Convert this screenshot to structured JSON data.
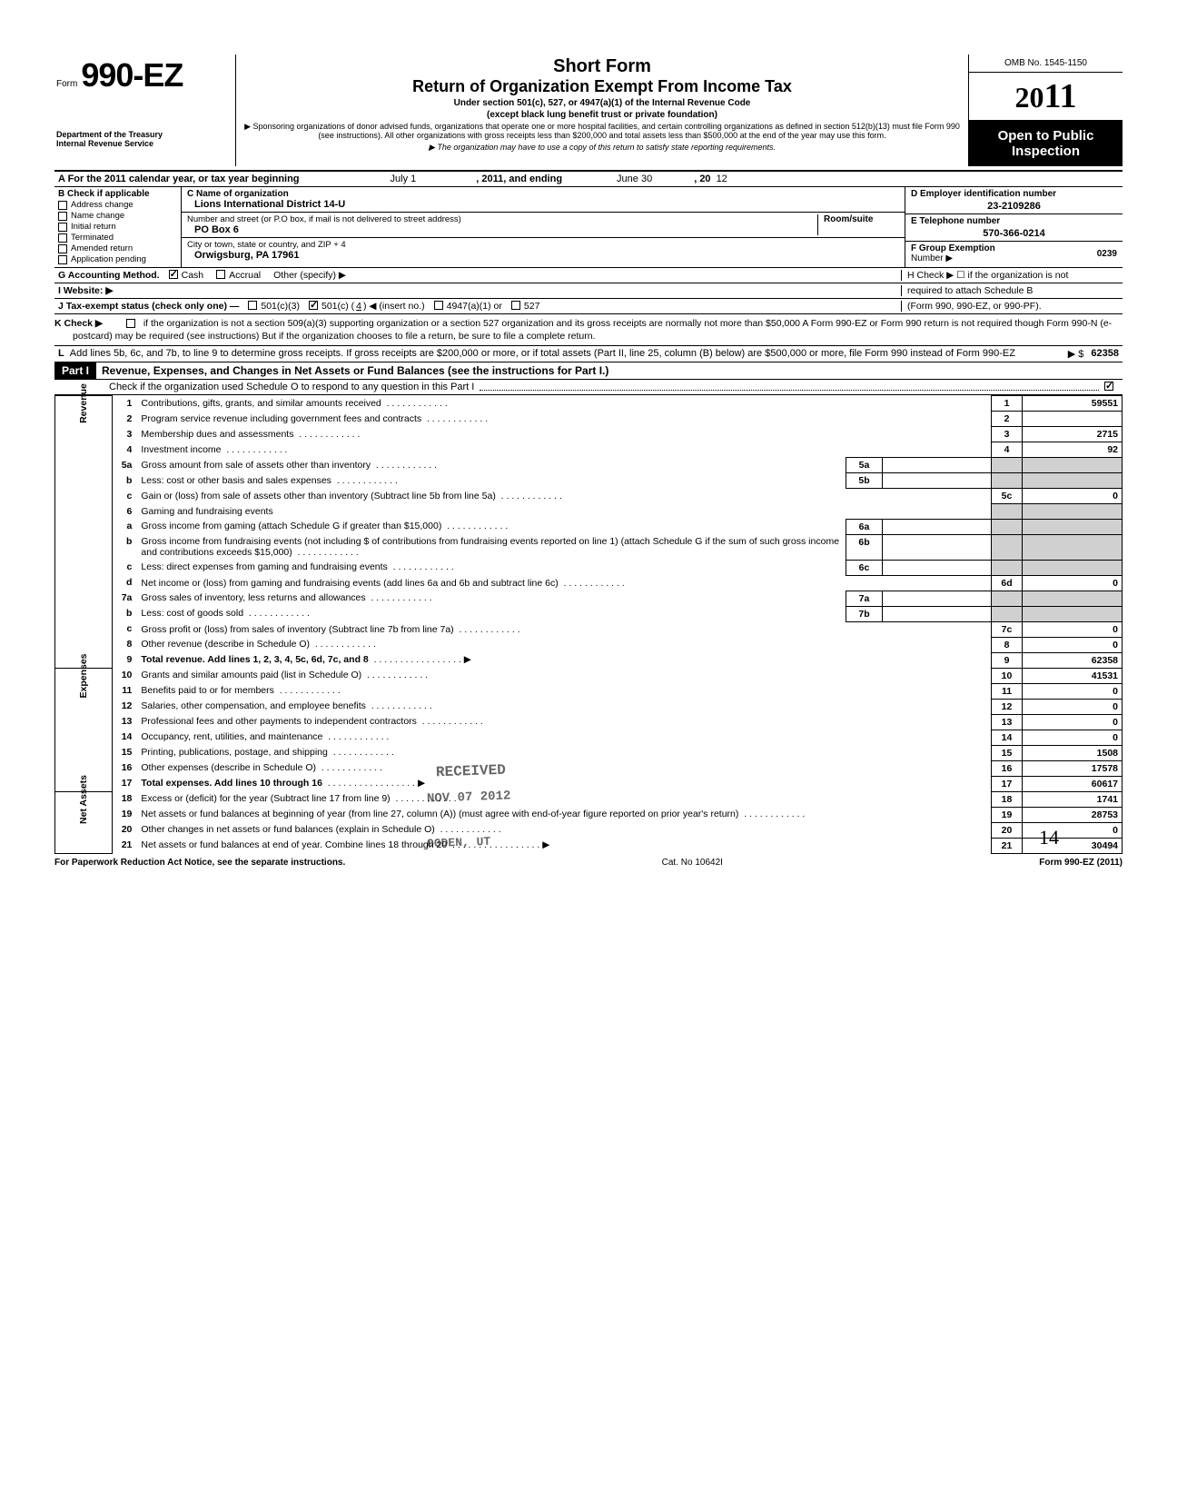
{
  "header": {
    "form_word": "Form",
    "form_no": "990-EZ",
    "dept1": "Department of the Treasury",
    "dept2": "Internal Revenue Service",
    "short": "Short Form",
    "title": "Return of Organization Exempt From Income Tax",
    "sub1": "Under section 501(c), 527, or 4947(a)(1) of the Internal Revenue Code",
    "sub1b": "(except black lung benefit trust or private foundation)",
    "sub2": "▶ Sponsoring organizations of donor advised funds, organizations that operate one or more hospital facilities, and certain controlling organizations as defined in section 512(b)(13) must file Form 990 (see instructions). All other organizations with gross receipts less than $200,000 and total assets less than $500,000 at the end of the year may use this form.",
    "sub3": "▶ The organization may have to use a copy of this return to satisfy state reporting requirements.",
    "omb": "OMB No. 1545-1150",
    "year_prefix": "20",
    "year_big": "11",
    "open1": "Open to Public",
    "open2": "Inspection"
  },
  "lineA": {
    "label": "A  For the 2011 calendar year, or tax year beginning",
    "begin": "July 1",
    "mid": ", 2011, and ending",
    "end": "June 30",
    "yr": ", 20",
    "yrv": "12"
  },
  "colB": {
    "hdr": "B  Check if applicable",
    "items": [
      "Address change",
      "Name change",
      "Initial return",
      "Terminated",
      "Amended return",
      "Application pending"
    ]
  },
  "colC": {
    "hdr": "C  Name of organization",
    "name": "Lions International District 14-U",
    "addr_lbl": "Number and street (or P.O  box, if mail is not delivered to street address)",
    "addr": "PO Box 6",
    "room_lbl": "Room/suite",
    "city_lbl": "City or town, state or country, and ZIP + 4",
    "city": "Orwigsburg, PA 17961"
  },
  "colD": {
    "d_lbl": "D Employer identification number",
    "d_val": "23-2109286",
    "e_lbl": "E Telephone number",
    "e_val": "570-366-0214",
    "f_lbl": "F Group Exemption",
    "f_lbl2": "Number ▶",
    "f_val": "0239"
  },
  "rowG": {
    "g": "G  Accounting Method.",
    "cash": "Cash",
    "accrual": "Accrual",
    "other": "Other (specify) ▶",
    "h": "H  Check ▶ ☐ if the organization is not",
    "h2": "required to attach Schedule B",
    "h3": "(Form 990, 990-EZ, or 990-PF)."
  },
  "rowI": {
    "i": "I   Website: ▶"
  },
  "rowJ": {
    "j": "J  Tax-exempt status (check only one) —",
    "c3": "501(c)(3)",
    "c": "501(c) (",
    "cn": "4",
    "cn2": " ) ◀ (insert no.)",
    "a1": "4947(a)(1) or",
    "s527": "527"
  },
  "rowK": {
    "k": "K  Check ▶",
    "txt": "if the organization is not a section 509(a)(3) supporting organization or a section 527 organization and its gross receipts are normally not more than $50,000  A Form 990-EZ or Form 990 return is not required though Form 990-N (e-postcard) may be required (see instructions)  But if the organization chooses to file a return, be sure to file a complete return."
  },
  "rowL": {
    "l": "L",
    "txt": "Add lines 5b, 6c, and 7b, to line 9 to determine gross receipts. If gross receipts are $200,000 or more, or if total assets (Part II, line 25, column (B) below) are $500,000 or more, file Form 990 instead of Form 990-EZ",
    "arrow": "▶  $",
    "val": "62358"
  },
  "part1": {
    "hdr": "Part I",
    "title": "Revenue, Expenses, and Changes in Net Assets or Fund Balances (see the instructions for Part I.)",
    "sched": "Check if the organization used Schedule O to respond to any question in this Part I"
  },
  "sections": {
    "revenue": "Revenue",
    "expenses": "Expenses",
    "netassets": "Net Assets"
  },
  "lines": [
    {
      "n": "1",
      "d": "Contributions, gifts, grants, and similar amounts received",
      "rn": "1",
      "v": "59551"
    },
    {
      "n": "2",
      "d": "Program service revenue including government fees and contracts",
      "rn": "2",
      "v": ""
    },
    {
      "n": "3",
      "d": "Membership dues and assessments",
      "rn": "3",
      "v": "2715"
    },
    {
      "n": "4",
      "d": "Investment income",
      "rn": "4",
      "v": "92"
    },
    {
      "n": "5a",
      "d": "Gross amount from sale of assets other than inventory",
      "sub": "5a",
      "sv": ""
    },
    {
      "n": "b",
      "d": "Less: cost or other basis and sales expenses",
      "sub": "5b",
      "sv": ""
    },
    {
      "n": "c",
      "d": "Gain or (loss) from sale of assets other than inventory (Subtract line 5b from line 5a)",
      "rn": "5c",
      "v": "0"
    },
    {
      "n": "6",
      "d": "Gaming and fundraising events"
    },
    {
      "n": "a",
      "d": "Gross income from gaming (attach Schedule G if greater than $15,000)",
      "sub": "6a",
      "sv": ""
    },
    {
      "n": "b",
      "d": "Gross income from fundraising events (not including  $                       of contributions from fundraising events reported on line 1) (attach Schedule G if the sum of such gross income and contributions exceeds $15,000)",
      "sub": "6b",
      "sv": ""
    },
    {
      "n": "c",
      "d": "Less: direct expenses from gaming and fundraising events",
      "sub": "6c",
      "sv": ""
    },
    {
      "n": "d",
      "d": "Net income or (loss) from gaming and fundraising events (add lines 6a and 6b and subtract line 6c)",
      "rn": "6d",
      "v": "0"
    },
    {
      "n": "7a",
      "d": "Gross sales of inventory, less returns and allowances",
      "sub": "7a",
      "sv": ""
    },
    {
      "n": "b",
      "d": "Less: cost of goods sold",
      "sub": "7b",
      "sv": ""
    },
    {
      "n": "c",
      "d": "Gross profit or (loss) from sales of inventory (Subtract line 7b from line 7a)",
      "rn": "7c",
      "v": "0"
    },
    {
      "n": "8",
      "d": "Other revenue (describe in Schedule O)",
      "rn": "8",
      "v": "0"
    },
    {
      "n": "9",
      "d": "Total revenue. Add lines 1, 2, 3, 4, 5c, 6d, 7c, and 8",
      "rn": "9",
      "v": "62358",
      "arrow": true,
      "bold": true
    }
  ],
  "exp_lines": [
    {
      "n": "10",
      "d": "Grants and similar amounts paid (list in Schedule O)",
      "rn": "10",
      "v": "41531"
    },
    {
      "n": "11",
      "d": "Benefits paid to or for members",
      "rn": "11",
      "v": "0"
    },
    {
      "n": "12",
      "d": "Salaries, other compensation, and employee benefits",
      "rn": "12",
      "v": "0"
    },
    {
      "n": "13",
      "d": "Professional fees and other payments to independent contractors",
      "rn": "13",
      "v": "0"
    },
    {
      "n": "14",
      "d": "Occupancy, rent, utilities, and maintenance",
      "rn": "14",
      "v": "0"
    },
    {
      "n": "15",
      "d": "Printing, publications, postage, and shipping",
      "rn": "15",
      "v": "1508"
    },
    {
      "n": "16",
      "d": "Other expenses (describe in Schedule O)",
      "rn": "16",
      "v": "17578"
    },
    {
      "n": "17",
      "d": "Total expenses. Add lines 10 through 16",
      "rn": "17",
      "v": "60617",
      "arrow": true,
      "bold": true
    }
  ],
  "na_lines": [
    {
      "n": "18",
      "d": "Excess or (deficit) for the year (Subtract line 17 from line 9)",
      "rn": "18",
      "v": "1741"
    },
    {
      "n": "19",
      "d": "Net assets or fund balances at beginning of year (from line 27, column (A)) (must agree with end-of-year figure reported on prior year's return)",
      "rn": "19",
      "v": "28753"
    },
    {
      "n": "20",
      "d": "Other changes in net assets or fund balances (explain in Schedule O)",
      "rn": "20",
      "v": "0"
    },
    {
      "n": "21",
      "d": "Net assets or fund balances at end of year. Combine lines 18 through 20",
      "rn": "21",
      "v": "30494",
      "arrow": true
    }
  ],
  "stamp": {
    "received": "RECEIVED",
    "date": "NOV 07 2012",
    "ogden": "OGDEN, UT"
  },
  "footer": {
    "l": "For Paperwork Reduction Act Notice, see the separate instructions.",
    "c": "Cat. No  10642I",
    "r": "Form 990-EZ (2011)"
  },
  "pagenum": "14"
}
